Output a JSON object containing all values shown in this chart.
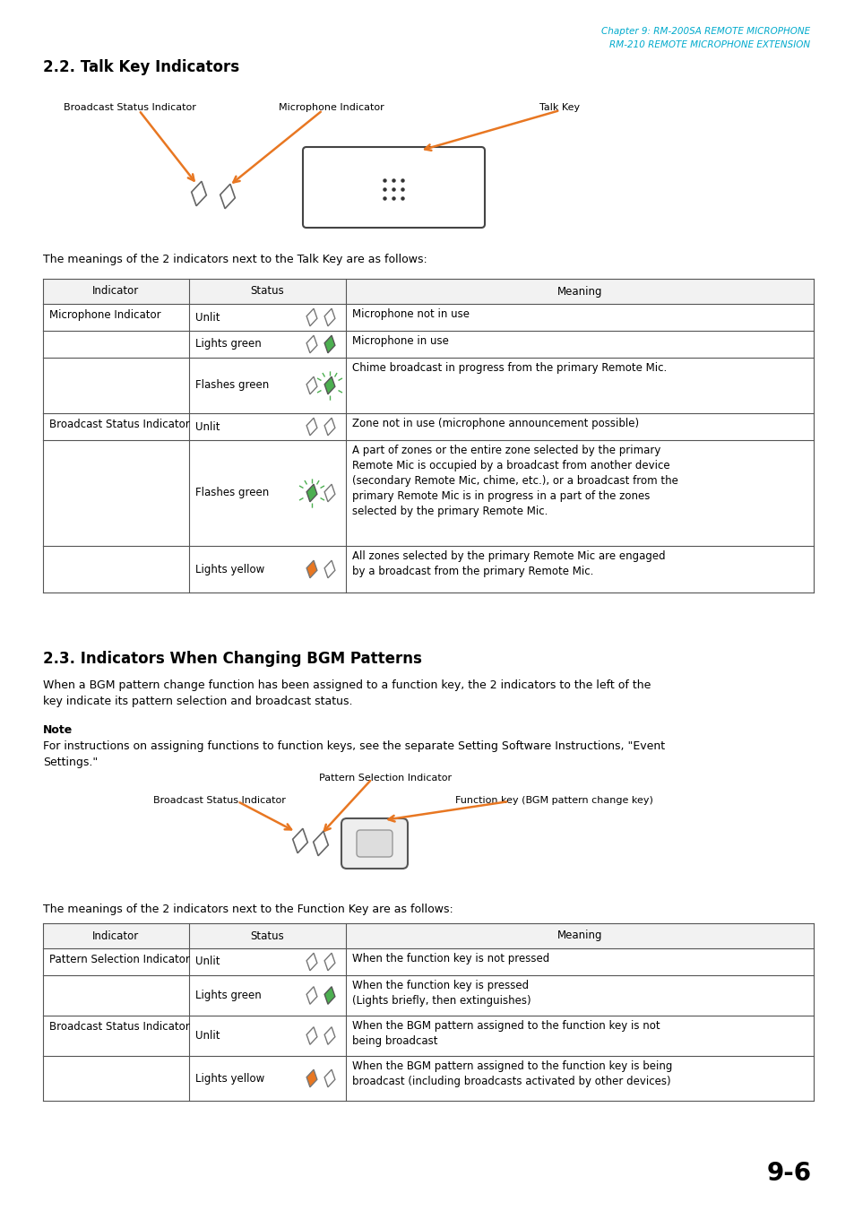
{
  "page_number": "9-6",
  "header_line1": "Chapter 9: RM-200SA REMOTE MICROPHONE",
  "header_line2": "RM-210 REMOTE MICROPHONE EXTENSION",
  "header_color": "#00AACC",
  "section1_title": "2.2. Talk Key Indicators",
  "section2_title": "2.3. Indicators When Changing BGM Patterns",
  "bg_color": "#FFFFFF",
  "orange_color": "#E87722",
  "green_color": "#4CAF50",
  "table1_intro": "The meanings of the 2 indicators next to the Talk Key are as follows:",
  "table2_intro": "The meanings of the 2 indicators next to the Function Key are as follows:",
  "section2_para1": "When a BGM pattern change function has been assigned to a function key, the 2 indicators to the left of the",
  "section2_para2": "key indicate its pattern selection and broadcast status.",
  "note_label": "Note",
  "note_text1": "For instructions on assigning functions to function keys, see the separate Setting Software Instructions, \"Event",
  "note_text2": "Settings.\""
}
